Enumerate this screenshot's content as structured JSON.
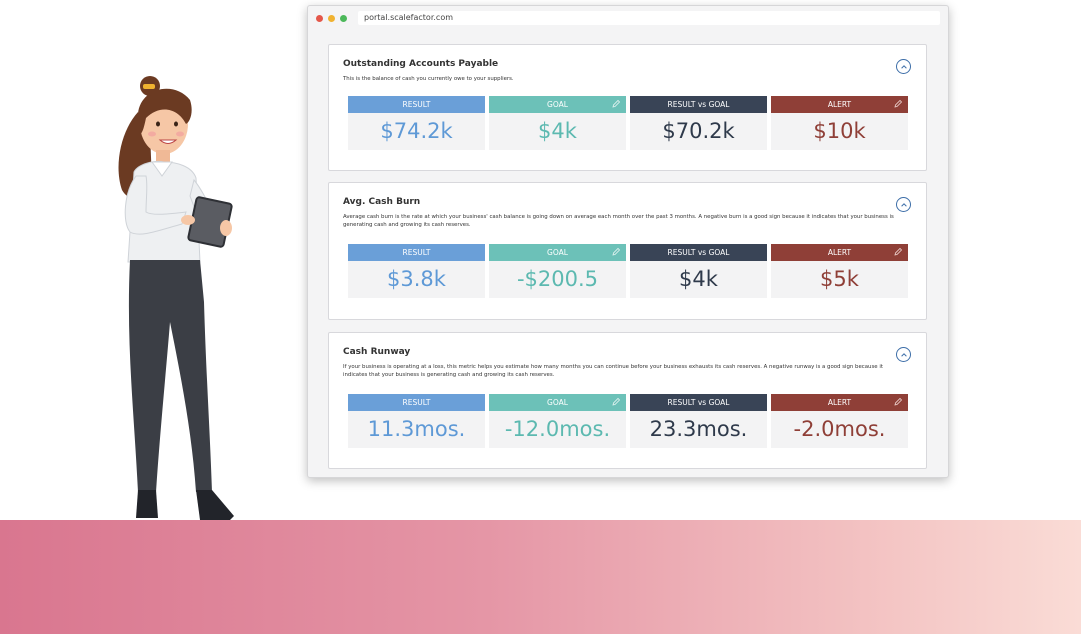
{
  "browser": {
    "url": "portal.scalefactor.com"
  },
  "labels": {
    "result": "RESULT",
    "goal": "GOAL",
    "result_vs_goal": "RESULT vs GOAL",
    "alert": "ALERT"
  },
  "cards": [
    {
      "title": "Outstanding Accounts Payable",
      "description": "This is the balance of cash you currently owe to your suppliers.",
      "result": "$74.2k",
      "goal": "$4k",
      "result_vs_goal": "$70.2k",
      "alert": "$10k"
    },
    {
      "title": "Avg. Cash Burn",
      "description": "Average cash burn is the rate at which your business' cash balance is going down on average each month over the past 3 months. A negative burn is a good sign because it indicates that your business is generating cash and growing its cash reserves.",
      "result": "$3.8k",
      "goal": "-$200.5",
      "result_vs_goal": "$4k",
      "alert": "$5k"
    },
    {
      "title": "Cash Runway",
      "description": "If your business is operating at a loss, this metric helps you estimate how many months you can continue before your business exhausts its cash reserves. A negative runway is a good sign because it indicates that your business is generating cash and growing its cash reserves.",
      "result": "11.3mos.",
      "goal": "-12.0mos.",
      "result_vs_goal": "23.3mos.",
      "alert": "-2.0mos."
    }
  ],
  "colors": {
    "result": "#6a9fd8",
    "goal": "#6cc1b8",
    "result_vs_goal": "#394456",
    "alert": "#8f3f37",
    "floor_start": "#d9768f",
    "floor_end": "#fadcd6"
  },
  "icons": [
    "collapse-chevron-up-icon",
    "pencil-edit-icon"
  ]
}
